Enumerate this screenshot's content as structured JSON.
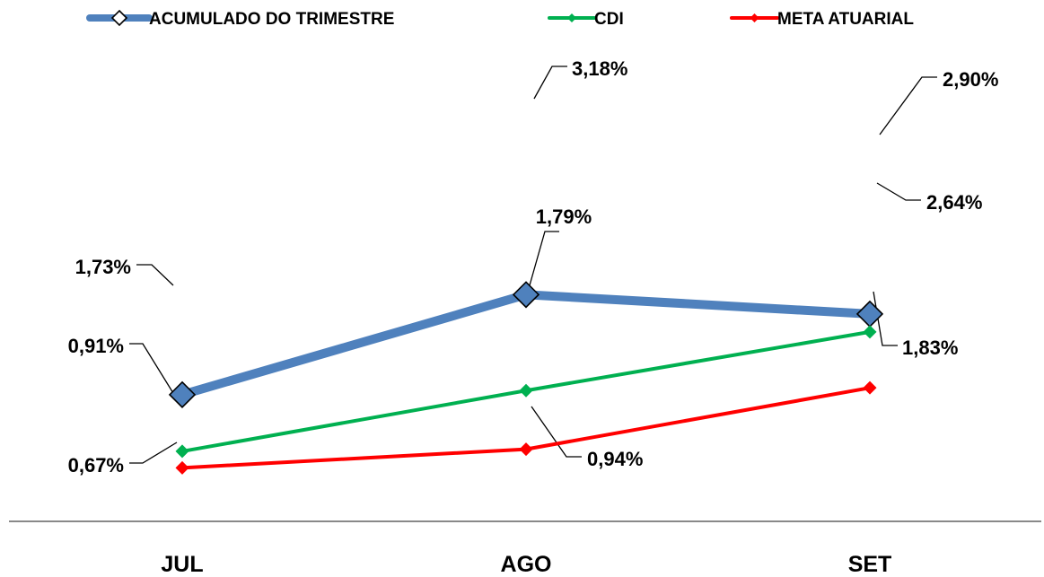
{
  "chart_data": {
    "type": "line",
    "categories": [
      "JUL",
      "AGO",
      "SET"
    ],
    "series": [
      {
        "name": "ACUMULADO DO TRIMESTRE",
        "values": [
          1.73,
          3.18,
          2.9
        ],
        "labels": [
          "1,73%",
          "3,18%",
          "2,90%"
        ],
        "color": "#4F81BD"
      },
      {
        "name": "CDI",
        "values": [
          0.91,
          1.79,
          2.64
        ],
        "labels": [
          "0,91%",
          "1,79%",
          "2,64%"
        ],
        "color": "#00B050"
      },
      {
        "name": "META ATUARIAL",
        "values": [
          0.67,
          0.94,
          1.83
        ],
        "labels": [
          "0,67%",
          "0,94%",
          "1,83%"
        ],
        "color": "#FF0000"
      }
    ],
    "legend_position": "top",
    "grid": false
  }
}
